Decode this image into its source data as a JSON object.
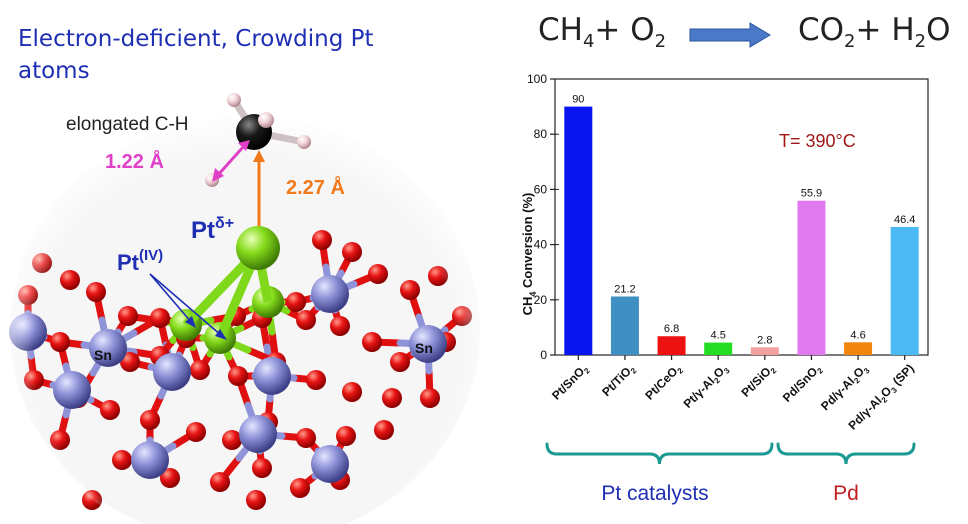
{
  "header": {
    "title_line1": "Electron-deficient, Crowding Pt",
    "title_line2": "atoms"
  },
  "reaction": {
    "left_a": "CH",
    "left_a_sub": "4",
    "left_plus": "+ O",
    "left_b_sub": "2",
    "right_a": "CO",
    "right_a_sub": "2",
    "right_plus": "+ H",
    "right_b_sub": "2",
    "right_b": "O",
    "arrow_color": "#4a79c8"
  },
  "structure": {
    "elongated_label": "elongated C-H",
    "ch_distance": "1.22 Å",
    "pt_c_distance": "2.27 Å",
    "pt_delta": "Pt",
    "pt_delta_sup": "δ+",
    "pt_iv": "Pt",
    "pt_iv_sup": "(IV)",
    "sn_left": "Sn",
    "sn_right": "Sn",
    "colors": {
      "oxygen": "#e01010",
      "tin": "#8f93d8",
      "platinum": "#7fd81a",
      "carbon": "#111111",
      "hydrogen": "#f2d4d8",
      "ch_arrow": "#e040c8",
      "pt_c_arrow": "#f07a1a",
      "pt_label": "#1f2fb4"
    }
  },
  "chart_data": {
    "type": "bar",
    "categories": [
      "Pt/SnO2",
      "Pt/TiO2",
      "Pt/CeO2",
      "Pt/γ-Al2O3",
      "Pt/SiO2",
      "Pd/SnO2",
      "Pd/γ-Al2O3",
      "Pd/γ-Al2O3 (SP)"
    ],
    "category_labels": [
      {
        "parts": [
          [
            "Pt/SnO",
            ""
          ],
          [
            "2",
            "sub"
          ]
        ]
      },
      {
        "parts": [
          [
            "Pt/TiO",
            ""
          ],
          [
            "2",
            "sub"
          ]
        ]
      },
      {
        "parts": [
          [
            "Pt/CeO",
            ""
          ],
          [
            "2",
            "sub"
          ]
        ]
      },
      {
        "parts": [
          [
            "Pt/γ-Al",
            ""
          ],
          [
            "2",
            "sub"
          ],
          [
            "O",
            ""
          ],
          [
            "3",
            "sub"
          ]
        ]
      },
      {
        "parts": [
          [
            "Pt/SiO",
            ""
          ],
          [
            "2",
            "sub"
          ]
        ]
      },
      {
        "parts": [
          [
            "Pd/SnO",
            ""
          ],
          [
            "2",
            "sub"
          ]
        ]
      },
      {
        "parts": [
          [
            "Pd/γ-Al",
            ""
          ],
          [
            "2",
            "sub"
          ],
          [
            "O",
            ""
          ],
          [
            "3",
            "sub"
          ]
        ]
      },
      {
        "parts": [
          [
            "Pd/γ-Al",
            ""
          ],
          [
            "2",
            "sub"
          ],
          [
            "O",
            ""
          ],
          [
            "3",
            "sub"
          ],
          [
            " (SP)",
            ""
          ]
        ]
      }
    ],
    "values": [
      90,
      21.2,
      6.8,
      4.5,
      2.8,
      55.9,
      4.6,
      46.4
    ],
    "value_labels": [
      "90",
      "21.2",
      "6.8",
      "4.5",
      "2.8",
      "55.9",
      "4.6",
      "46.4"
    ],
    "colors": [
      "#0a14ee",
      "#3f8fc2",
      "#ee1111",
      "#22dd22",
      "#f4a0a0",
      "#e07aee",
      "#f0860e",
      "#4cb8f4"
    ],
    "ylabel": "CH",
    "ylabel_sub": "4",
    "ylabel_rest": " Conversion (%)",
    "ylim": [
      0,
      100
    ],
    "yticks": [
      "0",
      "20",
      "40",
      "60",
      "80",
      "100"
    ],
    "annotation": "T= 390°C",
    "annotation_color": "#a01818",
    "groups": [
      {
        "label": "Pt catalysts",
        "color": "#1f2fb4",
        "brace_color": "#1a9a92"
      },
      {
        "label": "Pd",
        "color": "#c02020",
        "brace_color": "#1a9a92"
      }
    ]
  }
}
